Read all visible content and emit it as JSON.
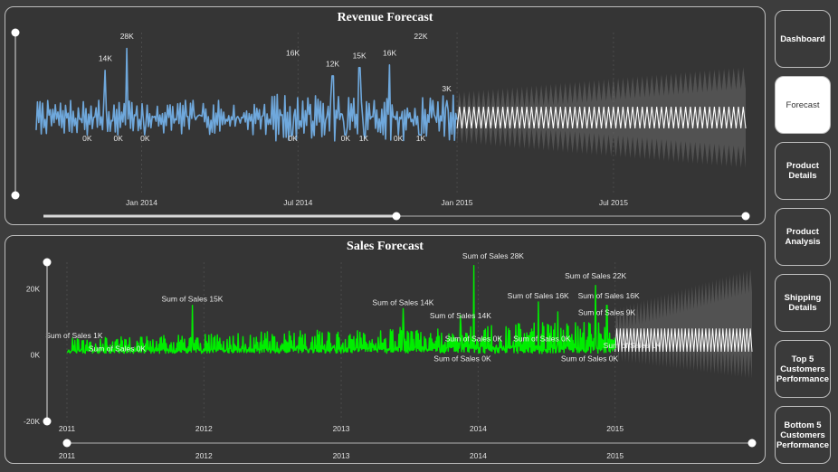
{
  "nav": {
    "buttons": [
      {
        "label": "Dashboard",
        "active": false
      },
      {
        "label": "Forecast",
        "active": true
      },
      {
        "label": "Product Details",
        "active": false
      },
      {
        "label": "Product Analysis",
        "active": false
      },
      {
        "label": "Shipping Details",
        "active": false
      },
      {
        "label": "Top 5 Customers Performance",
        "active": false
      },
      {
        "label": "Bottom 5 Customers Performance",
        "active": false
      }
    ]
  },
  "chart_data": [
    {
      "type": "line",
      "title": "Revenue Forecast",
      "xlabel": "",
      "ylabel": "",
      "x_ticks": [
        "Jan 2014",
        "Jul 2014",
        "Jan 2015",
        "Jul 2015"
      ],
      "x_range": [
        "2013-09",
        "2015-12"
      ],
      "actual_range": [
        "2013-09",
        "2014-12"
      ],
      "forecast_range": [
        "2015-01",
        "2015-12"
      ],
      "series_colors": {
        "actual": "#6fa8dc",
        "forecast": "#ffffff"
      },
      "data_labels": [
        {
          "x": "2013-11-20",
          "text": "14K",
          "pos": "above"
        },
        {
          "x": "2013-12-15",
          "text": "28K",
          "pos": "above"
        },
        {
          "x": "2014-06-25",
          "text": "16K",
          "pos": "above"
        },
        {
          "x": "2014-08-10",
          "text": "12K",
          "pos": "above"
        },
        {
          "x": "2014-09-10",
          "text": "15K",
          "pos": "above"
        },
        {
          "x": "2014-10-15",
          "text": "16K",
          "pos": "above"
        },
        {
          "x": "2014-11-20",
          "text": "22K",
          "pos": "above"
        },
        {
          "x": "2014-12-20",
          "text": "3K",
          "pos": "above"
        },
        {
          "x": "2013-10-30",
          "text": "0K",
          "pos": "below"
        },
        {
          "x": "2013-12-05",
          "text": "0K",
          "pos": "below"
        },
        {
          "x": "2014-01-05",
          "text": "0K",
          "pos": "below"
        },
        {
          "x": "2014-06-25",
          "text": "0K",
          "pos": "below"
        },
        {
          "x": "2014-08-25",
          "text": "0K",
          "pos": "below"
        },
        {
          "x": "2014-09-15",
          "text": "1K",
          "pos": "below"
        },
        {
          "x": "2014-10-25",
          "text": "0K",
          "pos": "below"
        },
        {
          "x": "2014-11-20",
          "text": "1K",
          "pos": "below"
        }
      ]
    },
    {
      "type": "line",
      "title": "Sales Forecast",
      "xlabel": "",
      "ylabel": "",
      "ylim": [
        -20000,
        28000
      ],
      "y_ticks": [
        "20K",
        "0K",
        "-20K"
      ],
      "y_tick_values": [
        20000,
        0,
        -20000
      ],
      "x_ticks": [
        "2011",
        "2012",
        "2013",
        "2014",
        "2015"
      ],
      "slider_ticks": [
        "2011",
        "2012",
        "2013",
        "2014",
        "2015"
      ],
      "actual_range": [
        "2011-01",
        "2014-12"
      ],
      "forecast_range": [
        "2015-01",
        "2015-12"
      ],
      "series_colors": {
        "actual": "#00ee00",
        "forecast": "#ffffff"
      },
      "data_labels": [
        {
          "x": "2011-01-20",
          "y": 4000,
          "text": "Sum of Sales 1K"
        },
        {
          "x": "2011-05-15",
          "y": 0,
          "text": "Sum of Sales 0K"
        },
        {
          "x": "2011-12-01",
          "y": 15000,
          "text": "Sum of Sales 15K"
        },
        {
          "x": "2013-06-15",
          "y": 14000,
          "text": "Sum of Sales 14K"
        },
        {
          "x": "2013-11-15",
          "y": 10000,
          "text": "Sum of Sales 14K"
        },
        {
          "x": "2014-02-10",
          "y": 28000,
          "text": "Sum of Sales 28K"
        },
        {
          "x": "2013-12-20",
          "y": 3000,
          "text": "Sum of Sales 0K"
        },
        {
          "x": "2013-11-20",
          "y": -3000,
          "text": "Sum of Sales 0K"
        },
        {
          "x": "2014-06-20",
          "y": 3000,
          "text": "Sum of Sales 0K"
        },
        {
          "x": "2014-06-10",
          "y": 16000,
          "text": "Sum of Sales 16K"
        },
        {
          "x": "2014-11-10",
          "y": 22000,
          "text": "Sum of Sales 22K"
        },
        {
          "x": "2014-12-15",
          "y": 16000,
          "text": "Sum of Sales 16K"
        },
        {
          "x": "2014-12-10",
          "y": 11000,
          "text": "Sum of Sales 9K"
        },
        {
          "x": "2015-02-15",
          "y": 1000,
          "text": "Sum of Sales 1K"
        },
        {
          "x": "2014-10-25",
          "y": -3000,
          "text": "Sum of Sales 0K"
        }
      ]
    }
  ]
}
